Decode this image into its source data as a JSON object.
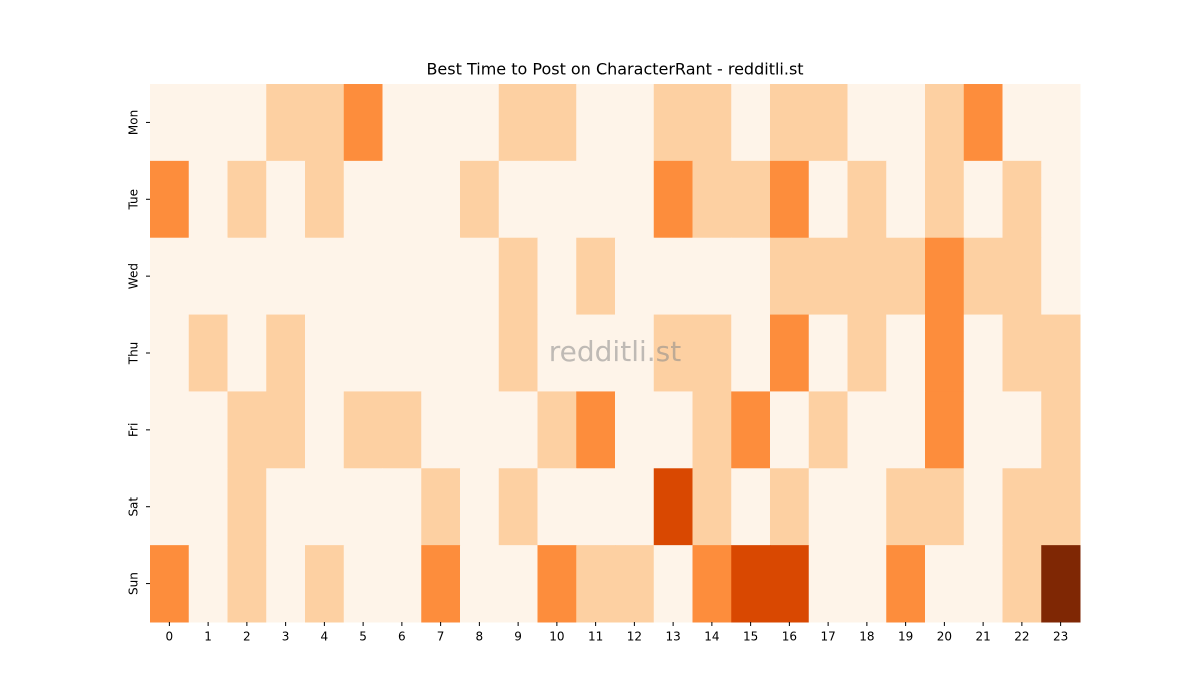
{
  "chart_data": {
    "type": "heatmap",
    "title": "Best Time to Post on CharacterRant - redditli.st",
    "watermark": "redditli.st",
    "x": [
      0,
      1,
      2,
      3,
      4,
      5,
      6,
      7,
      8,
      9,
      10,
      11,
      12,
      13,
      14,
      15,
      16,
      17,
      18,
      19,
      20,
      21,
      22,
      23
    ],
    "y": [
      "Mon",
      "Tue",
      "Wed",
      "Thu",
      "Fri",
      "Sat",
      "Sun"
    ],
    "values": [
      [
        0,
        0,
        0,
        1,
        1,
        2,
        0,
        0,
        0,
        1,
        1,
        0,
        0,
        1,
        1,
        0,
        1,
        1,
        0,
        0,
        1,
        2,
        0,
        0
      ],
      [
        2,
        0,
        1,
        0,
        1,
        0,
        0,
        0,
        1,
        0,
        0,
        0,
        0,
        2,
        1,
        1,
        2,
        0,
        1,
        0,
        1,
        0,
        1,
        0
      ],
      [
        0,
        0,
        0,
        0,
        0,
        0,
        0,
        0,
        0,
        1,
        0,
        1,
        0,
        0,
        0,
        0,
        1,
        1,
        1,
        1,
        2,
        1,
        1,
        0
      ],
      [
        0,
        1,
        0,
        1,
        0,
        0,
        0,
        0,
        0,
        1,
        0,
        0,
        0,
        1,
        1,
        0,
        2,
        0,
        1,
        0,
        2,
        0,
        1,
        1
      ],
      [
        0,
        0,
        1,
        1,
        0,
        1,
        1,
        0,
        0,
        0,
        1,
        2,
        0,
        0,
        1,
        2,
        0,
        1,
        0,
        0,
        2,
        0,
        0,
        1
      ],
      [
        0,
        0,
        1,
        0,
        0,
        0,
        0,
        1,
        0,
        1,
        0,
        0,
        0,
        3,
        1,
        0,
        1,
        0,
        0,
        1,
        1,
        0,
        1,
        1
      ],
      [
        2,
        0,
        1,
        0,
        1,
        0,
        0,
        2,
        0,
        0,
        2,
        1,
        1,
        0,
        2,
        3,
        3,
        0,
        0,
        2,
        0,
        0,
        1,
        4
      ]
    ],
    "colors": [
      "#fef4e9",
      "#fdd0a2",
      "#fd8d3c",
      "#d94801",
      "#7f2704"
    ]
  }
}
